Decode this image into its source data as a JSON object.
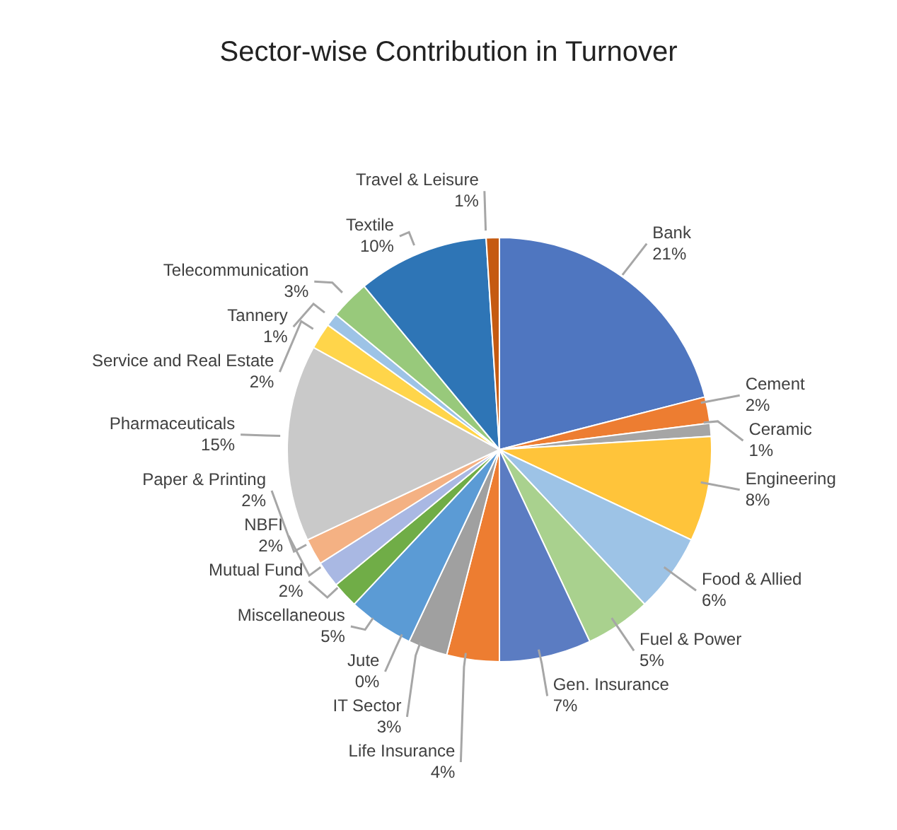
{
  "chart_data": {
    "type": "pie",
    "title": "Sector-wise Contribution in Turnover",
    "categories": [
      "Bank",
      "Cement",
      "Ceramic",
      "Engineering",
      "Food & Allied",
      "Fuel & Power",
      "Gen. Insurance",
      "Life Insurance",
      "IT Sector",
      "Jute",
      "Miscellaneous",
      "Mutual Fund",
      "NBFI",
      "Paper & Printing",
      "Pharmaceuticals",
      "Service and Real Estate",
      "Tannery",
      "Telecommunication",
      "Textile",
      "Travel & Leisure"
    ],
    "values": [
      21,
      2,
      1,
      8,
      6,
      5,
      7,
      4,
      3,
      0,
      5,
      2,
      2,
      2,
      15,
      2,
      1,
      3,
      10,
      1
    ],
    "value_labels": [
      "21%",
      "2%",
      "1%",
      "8%",
      "6%",
      "5%",
      "7%",
      "4%",
      "3%",
      "0%",
      "5%",
      "2%",
      "2%",
      "2%",
      "15%",
      "2%",
      "1%",
      "3%",
      "10%",
      "1%"
    ],
    "colors": [
      "#4f76c0",
      "#ed7d31",
      "#a5a5a5",
      "#ffc43a",
      "#9dc3e6",
      "#a9d18e",
      "#5b7cc2",
      "#ed7d31",
      "#a0a0a0",
      "#2f6fb0",
      "#5b9bd5",
      "#70ad47",
      "#a9b8e3",
      "#f4b183",
      "#c9c9c9",
      "#ffd54a",
      "#9dc3e6",
      "#98c97b",
      "#2e75b6",
      "#c55a11"
    ]
  }
}
